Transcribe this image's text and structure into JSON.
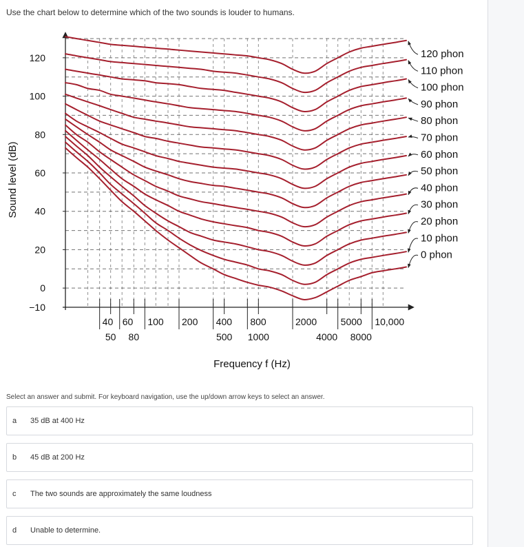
{
  "question": {
    "text": "Use the chart below to determine which of the two sounds is louder to humans."
  },
  "chart_data": {
    "type": "line",
    "ylabel": "Sound level (dB)",
    "xlabel": "Frequency f (Hz)",
    "x_scale": "log",
    "xlim": [
      20,
      20000
    ],
    "ylim": [
      -10,
      130
    ],
    "grid": true,
    "y_ticks": [
      "120",
      "100",
      "80",
      "60",
      "40",
      "20",
      "0",
      "−10"
    ],
    "y_tick_values": [
      120,
      100,
      80,
      60,
      40,
      20,
      0,
      -10
    ],
    "x_ticks_top": [
      "40",
      "60",
      "100",
      "200",
      "400",
      "800",
      "2000",
      "5000",
      "10,000"
    ],
    "x_ticks_top_values": [
      40,
      60,
      100,
      200,
      400,
      800,
      2000,
      5000,
      10000
    ],
    "x_ticks_bottom": [
      "50",
      "80",
      "500",
      "1000",
      "4000",
      "8000"
    ],
    "x_ticks_bottom_values": [
      50,
      80,
      500,
      1000,
      4000,
      8000
    ],
    "x": [
      20,
      25,
      31.5,
      40,
      50,
      63,
      80,
      100,
      125,
      160,
      200,
      250,
      315,
      400,
      500,
      630,
      800,
      1000,
      1250,
      1600,
      2000,
      2500,
      3150,
      4000,
      5000,
      6300,
      8000,
      10000,
      12500,
      16000,
      20000
    ],
    "series": [
      {
        "name": "120 phon",
        "values": [
          131,
          130,
          129,
          128,
          127,
          126.5,
          126,
          125.5,
          125,
          124.5,
          124,
          123.5,
          123,
          122.5,
          122,
          121.5,
          121,
          120,
          119,
          117,
          114,
          112,
          113,
          117,
          120,
          123,
          125,
          126,
          127,
          128,
          129
        ]
      },
      {
        "name": "110 phon",
        "values": [
          122,
          121,
          120,
          119,
          118,
          117.5,
          117,
          116.5,
          116,
          115.5,
          115,
          114.5,
          114,
          113,
          112.5,
          112,
          111,
          110,
          109,
          107,
          104,
          102,
          103,
          107,
          110,
          113,
          115,
          116,
          117,
          118,
          119
        ]
      },
      {
        "name": "100 phon",
        "values": [
          114,
          113,
          112,
          111,
          110,
          109,
          108.5,
          108,
          107,
          106.5,
          106,
          105,
          104,
          103.5,
          103,
          102,
          101,
          100,
          99,
          97,
          94,
          92,
          93,
          97,
          100,
          103,
          105,
          106,
          107,
          108,
          109
        ]
      },
      {
        "name": "90 phon",
        "values": [
          107,
          106,
          104,
          103,
          101,
          100,
          99,
          98,
          97,
          96,
          95,
          94,
          93.5,
          93,
          92.5,
          92,
          91,
          90,
          89,
          87,
          84,
          82,
          83,
          87,
          90,
          93,
          95,
          96,
          97,
          98,
          99
        ]
      },
      {
        "name": "80 phon",
        "values": [
          101,
          99,
          97,
          95,
          93,
          91,
          89,
          88,
          87,
          86,
          85,
          84,
          83.5,
          83,
          82.5,
          82,
          81,
          80,
          79,
          77,
          74,
          72,
          73,
          77,
          80,
          83,
          85,
          86,
          87,
          88,
          89
        ]
      },
      {
        "name": "70 phon",
        "values": [
          96,
          93,
          90,
          87,
          85,
          83,
          81,
          79,
          78,
          76.5,
          75.5,
          74.5,
          73.5,
          73,
          72.5,
          72,
          71,
          70,
          69,
          67,
          64,
          62,
          63,
          67,
          70,
          73,
          75,
          76,
          77,
          78,
          79
        ]
      },
      {
        "name": "60 phon",
        "values": [
          91,
          87,
          84,
          81,
          78,
          75,
          73,
          71,
          69,
          67.5,
          66,
          65,
          64,
          63,
          62.5,
          62,
          61,
          60,
          59,
          57,
          54,
          52,
          53,
          57,
          60,
          63,
          65,
          66,
          67,
          68,
          69
        ]
      },
      {
        "name": "50 phon",
        "values": [
          88,
          84,
          80,
          76,
          72,
          69,
          66,
          63,
          61,
          59,
          57,
          55.5,
          54.5,
          53.5,
          53,
          52,
          51,
          50,
          49,
          47,
          44,
          42,
          43,
          47,
          50,
          53,
          55,
          56,
          57,
          58,
          59
        ]
      },
      {
        "name": "40 phon",
        "values": [
          85,
          80,
          76,
          71,
          67,
          63,
          59,
          56,
          53,
          50.5,
          48,
          46.5,
          45,
          44,
          43,
          42,
          41,
          40,
          39,
          37,
          34,
          32,
          33,
          37,
          40,
          43,
          45,
          46,
          47,
          48,
          49
        ]
      },
      {
        "name": "30 phon",
        "values": [
          82,
          77,
          72,
          67,
          62,
          57,
          53,
          49,
          46,
          43,
          40,
          38,
          36,
          34.5,
          33.5,
          32.5,
          31.5,
          30,
          29,
          27,
          24,
          22,
          23,
          27,
          30,
          33,
          35,
          36,
          37,
          38,
          39
        ]
      },
      {
        "name": "20 phon",
        "values": [
          79,
          74,
          69,
          63,
          58,
          53,
          48,
          43,
          39,
          35,
          32,
          29,
          27,
          25,
          24,
          23,
          21.5,
          20,
          19,
          17,
          14,
          12,
          13,
          17,
          20,
          23,
          25,
          26,
          27,
          28,
          29
        ]
      },
      {
        "name": "10 phon",
        "values": [
          76,
          71,
          66,
          60,
          54,
          49,
          44,
          39,
          34,
          30,
          26,
          22.5,
          19.5,
          17,
          15,
          13.5,
          12,
          10,
          9,
          7,
          4,
          2,
          3,
          7,
          10,
          13,
          15,
          16,
          17,
          18,
          19
        ]
      },
      {
        "name": "0 phon",
        "values": [
          73,
          68,
          63,
          57,
          51,
          45,
          40,
          35,
          30,
          25,
          21,
          17,
          13,
          10,
          7,
          5,
          3,
          1.5,
          0.5,
          -1.5,
          -4,
          -6,
          -5,
          -2,
          1,
          4,
          6,
          8,
          9,
          10,
          11
        ]
      }
    ]
  },
  "answers": {
    "instructions": "Select an answer and submit. For keyboard navigation, use the up/down arrow keys to select an answer.",
    "options": [
      {
        "letter": "a",
        "text": "35 dB at 400 Hz"
      },
      {
        "letter": "b",
        "text": "45 dB at 200 Hz"
      },
      {
        "letter": "c",
        "text": "The two sounds are approximately the same loudness"
      },
      {
        "letter": "d",
        "text": "Unable to determine."
      }
    ]
  },
  "colors": {
    "curve": "#a51f2d",
    "axis": "#222222",
    "grid": "#444444",
    "option_border": "#d6d9de"
  }
}
